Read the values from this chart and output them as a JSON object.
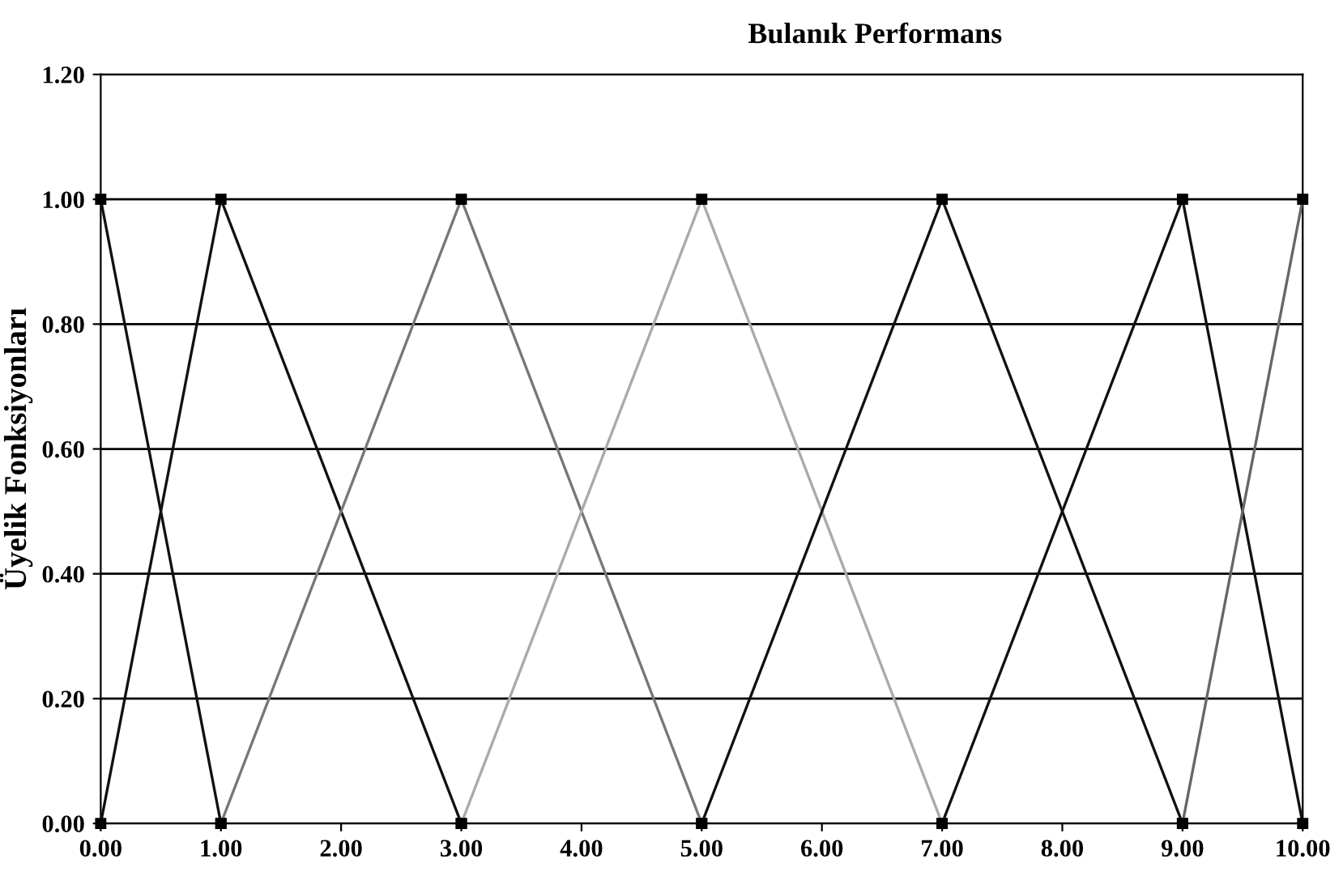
{
  "chart_data": {
    "type": "line",
    "title": "Bulanık Performans",
    "ylabel": "Üyelik Fonksiyonları",
    "series": [
      {
        "color": "#111111",
        "x": [
          0,
          1
        ],
        "values": [
          1,
          0
        ]
      },
      {
        "color": "#111111",
        "x": [
          0,
          1,
          3
        ],
        "values": [
          0,
          1,
          0
        ]
      },
      {
        "color": "#777777",
        "x": [
          1,
          3,
          5
        ],
        "values": [
          0,
          1,
          0
        ]
      },
      {
        "color": "#aaaaaa",
        "x": [
          3,
          5,
          7
        ],
        "values": [
          0,
          1,
          0
        ]
      },
      {
        "color": "#111111",
        "x": [
          5,
          7,
          9
        ],
        "values": [
          0,
          1,
          0
        ]
      },
      {
        "color": "#111111",
        "x": [
          7,
          9,
          10
        ],
        "values": [
          0,
          1,
          0
        ]
      },
      {
        "color": "#666666",
        "x": [
          9,
          10
        ],
        "values": [
          0,
          1
        ]
      }
    ],
    "xlim": [
      0,
      10
    ],
    "xticks": [
      {
        "value": 0,
        "label": "0.00"
      },
      {
        "value": 1,
        "label": "1.00"
      },
      {
        "value": 2,
        "label": "2.00"
      },
      {
        "value": 3,
        "label": "3.00"
      },
      {
        "value": 4,
        "label": "4.00"
      },
      {
        "value": 5,
        "label": "5.00"
      },
      {
        "value": 6,
        "label": "6.00"
      },
      {
        "value": 7,
        "label": "7.00"
      },
      {
        "value": 8,
        "label": "8.00"
      },
      {
        "value": 9,
        "label": "9.00"
      },
      {
        "value": 10,
        "label": "10.00"
      }
    ],
    "ylim": [
      0,
      1.2
    ],
    "yticks": [
      {
        "value": 0,
        "label": "0.00"
      },
      {
        "value": 0.2,
        "label": "0.20"
      },
      {
        "value": 0.4,
        "label": "0.40"
      },
      {
        "value": 0.6,
        "label": "0.60"
      },
      {
        "value": 0.8,
        "label": "0.80"
      },
      {
        "value": 1.0,
        "label": "1.00"
      },
      {
        "value": 1.2,
        "label": "1.20"
      }
    ],
    "grid": "y",
    "marker": "square",
    "line_style": "solid",
    "legend": false
  }
}
